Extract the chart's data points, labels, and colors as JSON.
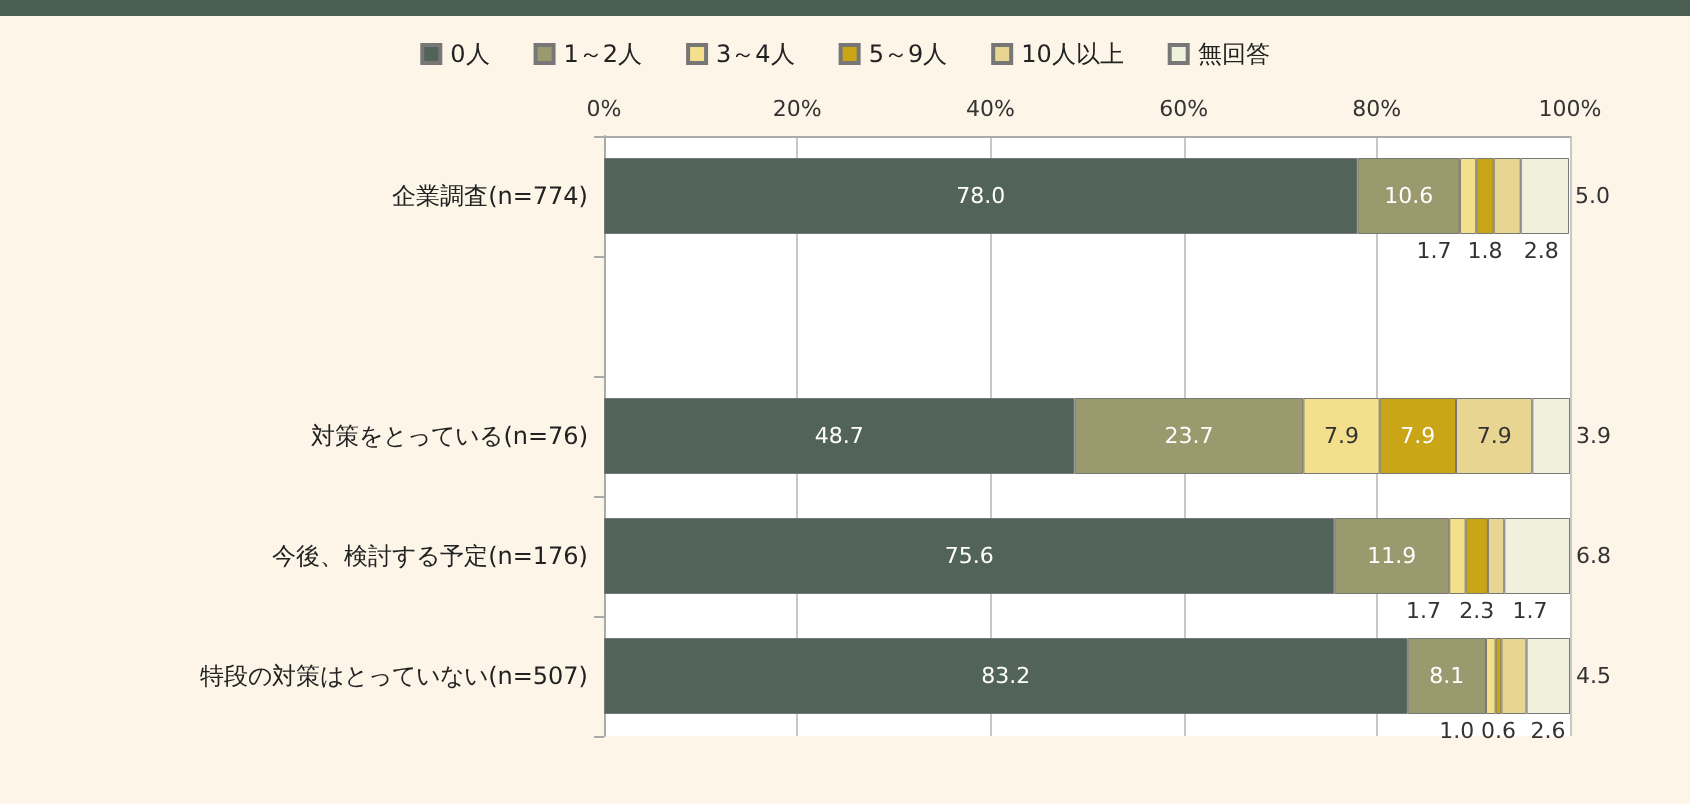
{
  "chart_data": {
    "type": "bar",
    "orientation": "horizontal",
    "stacked": true,
    "categories": [
      "企業調査(n=774)",
      null,
      "対策をとっている(n=76)",
      "今後、検討する予定(n=176)",
      "特段の対策はとっていない(n=507)"
    ],
    "series": [
      {
        "name": "0人",
        "color": "#52645a",
        "values": [
          78.0,
          null,
          48.7,
          75.6,
          83.2
        ],
        "value_labels": [
          "78.0",
          null,
          "48.7",
          "75.6",
          "83.2"
        ]
      },
      {
        "name": "1～2人",
        "color": "#9b9a6e",
        "values": [
          10.6,
          null,
          23.7,
          11.9,
          8.1
        ],
        "value_labels": [
          "10.6",
          null,
          "23.7",
          "11.9",
          "8.1"
        ]
      },
      {
        "name": "3～4人",
        "color": "#f3df8c",
        "values": [
          1.7,
          null,
          7.9,
          1.7,
          1.0
        ],
        "value_labels": [
          "1.7",
          null,
          "7.9",
          "1.7",
          "1.0"
        ]
      },
      {
        "name": "5～9人",
        "color": "#caa515",
        "values": [
          1.8,
          null,
          7.9,
          2.3,
          0.6
        ],
        "value_labels": [
          "1.8",
          null,
          "7.9",
          "2.3",
          "0.6"
        ]
      },
      {
        "name": "10人以上",
        "color": "#e9d592",
        "values": [
          2.8,
          null,
          7.9,
          1.7,
          2.6
        ],
        "value_labels": [
          "2.8",
          null,
          "7.9",
          "1.7",
          "2.6"
        ]
      },
      {
        "name": "無回答",
        "color": "#eff1dd",
        "values": [
          5.0,
          null,
          3.9,
          6.8,
          4.5
        ],
        "value_labels": [
          "5.0",
          null,
          "3.9",
          "6.8",
          "4.5"
        ]
      }
    ],
    "xlim": [
      0,
      100
    ],
    "xticks": [
      {
        "value": 0,
        "label": "0%"
      },
      {
        "value": 20,
        "label": "20%"
      },
      {
        "value": 40,
        "label": "40%"
      },
      {
        "value": 60,
        "label": "60%"
      },
      {
        "value": 80,
        "label": "80%"
      },
      {
        "value": 100,
        "label": "100%"
      }
    ],
    "grid": "x",
    "legend": "top"
  }
}
